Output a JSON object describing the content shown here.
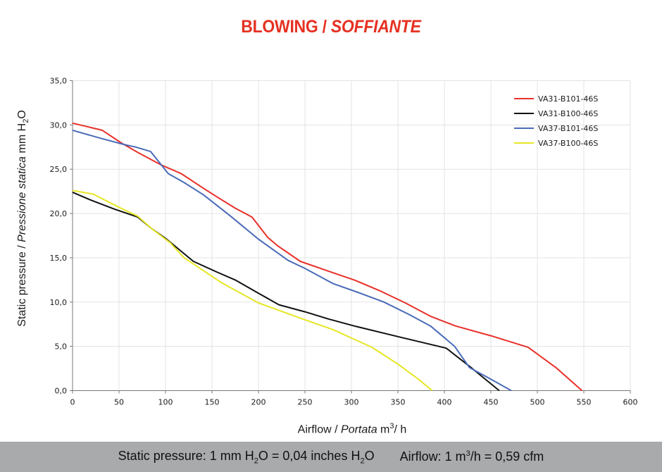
{
  "title": {
    "main": "BLOWING / ",
    "italic": "SOFFIANTE"
  },
  "y_axis_label": {
    "prefix": "Static pressure / ",
    "italic": "Pressione statica",
    "unit_pre": " mm  H",
    "unit_sub": "2",
    "unit_post": "O"
  },
  "x_axis_label": {
    "prefix": "Airflow / ",
    "italic": "Portata",
    "unit_pre": "  m",
    "unit_sup": "3",
    "unit_post": "/ h"
  },
  "footer": {
    "pressure_pre": "Static pressure: 1 mm H",
    "pressure_sub1": "2",
    "pressure_mid": "O = 0,04 inches H",
    "pressure_sub2": "2",
    "pressure_post": "O",
    "airflow_pre": "Airflow: 1 m",
    "airflow_sup": "3",
    "airflow_post": "/h = 0,59 cfm"
  },
  "chart_data": {
    "type": "line",
    "title": "BLOWING / SOFFIANTE",
    "xlabel": "Airflow / Portata m³/h",
    "ylabel": "Static pressure / Pressione statica mm H₂O",
    "xlim": [
      0,
      600
    ],
    "ylim": [
      0,
      35
    ],
    "x_ticks": [
      "0",
      "50",
      "100",
      "150",
      "200",
      "250",
      "300",
      "350",
      "400",
      "450",
      "500",
      "550",
      "600"
    ],
    "y_ticks": [
      "0,0",
      "5,0",
      "10,0",
      "15,0",
      "20,0",
      "25,0",
      "30,0",
      "35,0"
    ],
    "grid": true,
    "legend_position": "top-right",
    "series": [
      {
        "name": "VA31-B101-46S",
        "color": "#e8302a",
        "points": [
          [
            0,
            30.2
          ],
          [
            32,
            29.4
          ],
          [
            52,
            28.0
          ],
          [
            70,
            26.9
          ],
          [
            95,
            25.5
          ],
          [
            117,
            24.5
          ],
          [
            140,
            22.9
          ],
          [
            155,
            21.9
          ],
          [
            175,
            20.6
          ],
          [
            193,
            19.6
          ],
          [
            210,
            17.3
          ],
          [
            220,
            16.4
          ],
          [
            245,
            14.6
          ],
          [
            275,
            13.5
          ],
          [
            303,
            12.5
          ],
          [
            330,
            11.3
          ],
          [
            358,
            9.9
          ],
          [
            385,
            8.4
          ],
          [
            412,
            7.3
          ],
          [
            450,
            6.2
          ],
          [
            490,
            4.9
          ],
          [
            520,
            2.6
          ],
          [
            548,
            0.0
          ]
        ]
      },
      {
        "name": "VA31-B100-46S",
        "color": "#111111",
        "points": [
          [
            0,
            22.4
          ],
          [
            20,
            21.5
          ],
          [
            45,
            20.5
          ],
          [
            70,
            19.6
          ],
          [
            85,
            18.3
          ],
          [
            100,
            17.2
          ],
          [
            115,
            15.9
          ],
          [
            130,
            14.6
          ],
          [
            155,
            13.4
          ],
          [
            175,
            12.5
          ],
          [
            200,
            11.0
          ],
          [
            222,
            9.7
          ],
          [
            250,
            8.9
          ],
          [
            275,
            8.1
          ],
          [
            303,
            7.3
          ],
          [
            350,
            6.1
          ],
          [
            402,
            4.8
          ],
          [
            430,
            2.5
          ],
          [
            459,
            0.0
          ]
        ]
      },
      {
        "name": "VA37-B101-46S",
        "color": "#4a6bb8",
        "points": [
          [
            0,
            29.4
          ],
          [
            30,
            28.5
          ],
          [
            55,
            27.8
          ],
          [
            68,
            27.5
          ],
          [
            84,
            27.0
          ],
          [
            103,
            24.5
          ],
          [
            120,
            23.5
          ],
          [
            141,
            22.1
          ],
          [
            170,
            19.7
          ],
          [
            200,
            17.1
          ],
          [
            232,
            14.7
          ],
          [
            250,
            13.8
          ],
          [
            280,
            12.1
          ],
          [
            307,
            11.1
          ],
          [
            335,
            10.0
          ],
          [
            362,
            8.6
          ],
          [
            385,
            7.3
          ],
          [
            411,
            5.0
          ],
          [
            427,
            2.6
          ],
          [
            450,
            1.3
          ],
          [
            472,
            0.0
          ]
        ]
      },
      {
        "name": "VA37-B100-46S",
        "color": "#e6e625",
        "points": [
          [
            0,
            22.6
          ],
          [
            22,
            22.2
          ],
          [
            50,
            20.7
          ],
          [
            70,
            19.7
          ],
          [
            85,
            18.3
          ],
          [
            105,
            16.7
          ],
          [
            120,
            15.0
          ],
          [
            130,
            14.3
          ],
          [
            160,
            12.2
          ],
          [
            200,
            9.9
          ],
          [
            250,
            8.0
          ],
          [
            280,
            6.9
          ],
          [
            322,
            4.9
          ],
          [
            350,
            3.0
          ],
          [
            372,
            1.3
          ],
          [
            387,
            0.0
          ]
        ]
      }
    ]
  }
}
